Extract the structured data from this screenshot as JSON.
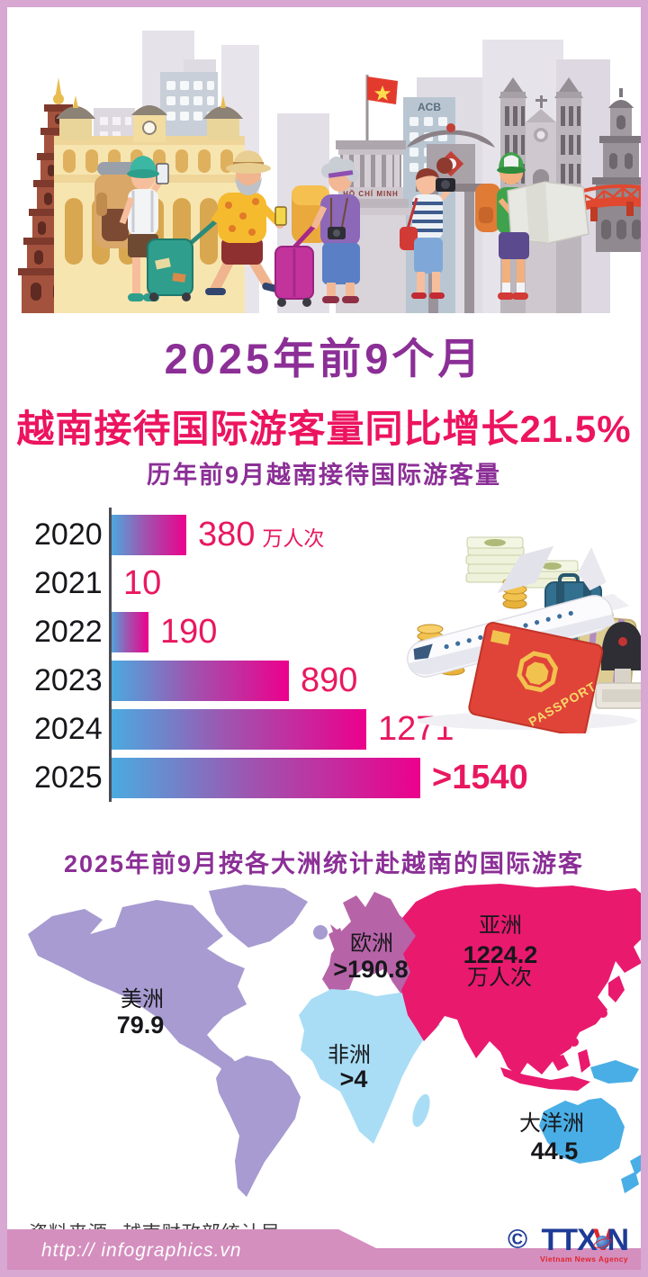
{
  "header": {
    "title_line1": "2025年前9个月",
    "title_line2": "越南接待国际游客量同比增长21.5%"
  },
  "chart_data": [
    {
      "type": "bar",
      "orientation": "horizontal",
      "title": "历年前9月越南接待国际游客量",
      "categories": [
        "2020",
        "2021",
        "2022",
        "2023",
        "2024",
        "2025"
      ],
      "values": [
        380,
        10,
        190,
        890,
        1271,
        1540
      ],
      "value_labels": [
        "380",
        "10",
        "190",
        "890",
        "1271",
        ">1540"
      ],
      "unit": "万人次",
      "xlim": [
        0,
        1540
      ],
      "bar_gradient": [
        "#49ACE1",
        "#EC008C"
      ],
      "grid": false
    },
    {
      "type": "heatmap",
      "subtype": "world-choropleth",
      "title": "2025年前9月按各大洲统计赴越南的国际游客",
      "unit": "万人次",
      "regions": [
        {
          "name": "美洲",
          "value_label": "79.9",
          "value": 79.9,
          "color": "#A79BD1"
        },
        {
          "name": "欧洲",
          "value_label": ">190.8",
          "value": 190.8,
          "color": "#B763A8"
        },
        {
          "name": "亚洲",
          "value_label": "1224.2",
          "value": 1224.2,
          "unit": "万人次",
          "color": "#E9196E"
        },
        {
          "name": "非洲",
          "value_label": ">4",
          "value": 4,
          "color": "#A9DDF5"
        },
        {
          "name": "大洋洲",
          "value_label": "44.5",
          "value": 44.5,
          "color": "#49AEE5"
        }
      ]
    }
  ],
  "illustrations": {
    "mausoleum_text": "HỒ CHÍ MINH",
    "acb_text": "ACB",
    "passport_text": "PASSPORT"
  },
  "footer": {
    "source": "资料来源: 越南财政部统计局",
    "url": "http:// infographics.vn",
    "copyright_symbol": "©",
    "logo": {
      "part1": "TTX",
      "part2": "V",
      "part3": "N",
      "subtitle": "Vietnam News Agency"
    }
  }
}
